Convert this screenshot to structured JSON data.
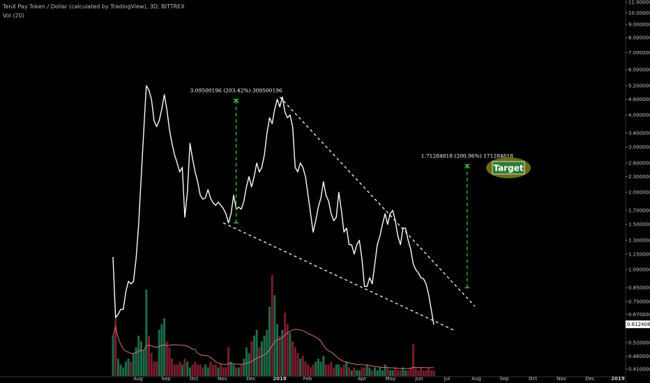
{
  "header": {
    "title": "TenX Pay Token / Dollar (calculated by TradingView), 3D, BITTREX",
    "indicator": "Vol (20)"
  },
  "colors": {
    "background": "#000000",
    "price_line": "#ffffff",
    "trendline": "#ffffff",
    "measure_arrow": "#3fd13f",
    "volume_up": "#1e6b4a",
    "volume_down": "#7a1c2e",
    "volume_ma": "#d27a6a",
    "target_ellipse": "#6b6b12",
    "target_box": "#2e7d32"
  },
  "chart_data": {
    "type": "line",
    "scale": "log",
    "ylim": [
      0.4,
      11.0
    ],
    "x_ticks": [
      "Aug",
      "Sep",
      "Oct",
      "Nov",
      "Dec",
      "2018",
      "Feb",
      "Apr",
      "May",
      "Jun",
      "Jul",
      "Aug",
      "Sep",
      "Oct",
      "Nov",
      "Dec",
      "2019"
    ],
    "y_ticks": [
      "11.0000000",
      "10.0000000",
      "9.00000000",
      "8.00000000",
      "7.00000000",
      "6.00000000",
      "5.20000000",
      "4.60000000",
      "4.00000000",
      "3.40000000",
      "3.00000000",
      "2.60000000",
      "2.30000000",
      "2.00000000",
      "1.70000000",
      "1.50000000",
      "1.30000000",
      "1.15000000",
      "1.00000000",
      "0.85000000",
      "0.75000000",
      "0.67000000",
      "0.52000000",
      "0.46000000",
      "0.41000000"
    ],
    "last_price": "0.61240828",
    "series": [
      {
        "values": [
          1.12,
          0.65,
          0.67,
          0.7,
          0.7,
          0.82,
          0.9,
          0.88,
          0.9,
          1.1,
          1.5,
          2.3,
          3.5,
          5.2,
          5.0,
          4.6,
          3.8,
          3.6,
          3.8,
          4.2,
          4.8,
          4.2,
          3.5,
          3.1,
          2.8,
          2.6,
          2.4,
          2.5,
          1.6,
          2.0,
          3.1,
          2.7,
          2.4,
          2.2,
          1.95,
          1.88,
          1.9,
          2.05,
          1.9,
          1.82,
          1.78,
          1.83,
          1.78,
          1.73,
          1.65,
          1.52,
          1.65,
          1.95,
          1.72,
          1.75,
          1.72,
          1.85,
          2.1,
          2.3,
          2.1,
          2.3,
          2.6,
          2.4,
          2.5,
          2.8,
          3.4,
          3.9,
          3.7,
          4.2,
          4.6,
          4.3,
          4.7,
          4.1,
          3.9,
          4.0,
          3.6,
          2.5,
          2.4,
          2.6,
          2.5,
          2.3,
          1.95,
          1.65,
          1.4,
          1.55,
          1.75,
          1.9,
          2.2,
          1.95,
          1.85,
          1.65,
          1.55,
          1.6,
          2.0,
          1.7,
          1.4,
          1.45,
          1.25,
          1.25,
          1.15,
          1.25,
          1.3,
          1.1,
          0.86,
          0.86,
          0.93,
          0.88,
          1.05,
          1.25,
          1.35,
          1.5,
          1.65,
          1.5,
          1.65,
          1.7,
          1.55,
          1.35,
          1.25,
          1.45,
          1.45,
          1.3,
          1.2,
          1.05,
          1.0,
          0.97,
          0.93,
          0.92,
          0.88,
          0.8,
          0.7,
          0.61
        ]
      }
    ],
    "volume": {
      "values": [
        14,
        20,
        6,
        4,
        3,
        5,
        6,
        5,
        8,
        10,
        14,
        12,
        9,
        30,
        14,
        8,
        5,
        5,
        16,
        18,
        20,
        12,
        10,
        6,
        4,
        4,
        5,
        4,
        6,
        5,
        3,
        4,
        5,
        4,
        4,
        3,
        4,
        3,
        5,
        4,
        4,
        3,
        4,
        3,
        3,
        10,
        5,
        4,
        3,
        3,
        4,
        6,
        10,
        8,
        12,
        14,
        16,
        10,
        12,
        14,
        16,
        24,
        35,
        28,
        18,
        14,
        16,
        22,
        18,
        15,
        12,
        10,
        8,
        6,
        7,
        5,
        4,
        3,
        4,
        5,
        6,
        5,
        7,
        4,
        4,
        5,
        3,
        4,
        4,
        3,
        4,
        5,
        3,
        2,
        3,
        2,
        2,
        3,
        3,
        4,
        3,
        2,
        3,
        2,
        3,
        2,
        4,
        3,
        2,
        2,
        3,
        2,
        2,
        3,
        2,
        2,
        3,
        11,
        3,
        2,
        3,
        2,
        2,
        3,
        2,
        2
      ]
    },
    "annotations": [
      {
        "label": "3.09500196 (203.42%) 309500196",
        "from_x": 48,
        "from_y": 1.52,
        "to_y": 4.6
      },
      {
        "label": "1.71284818 (200.96%) 171284818",
        "from_x": 138,
        "from_y": 0.85,
        "to_y": 2.56
      }
    ],
    "target_label": "Target"
  }
}
